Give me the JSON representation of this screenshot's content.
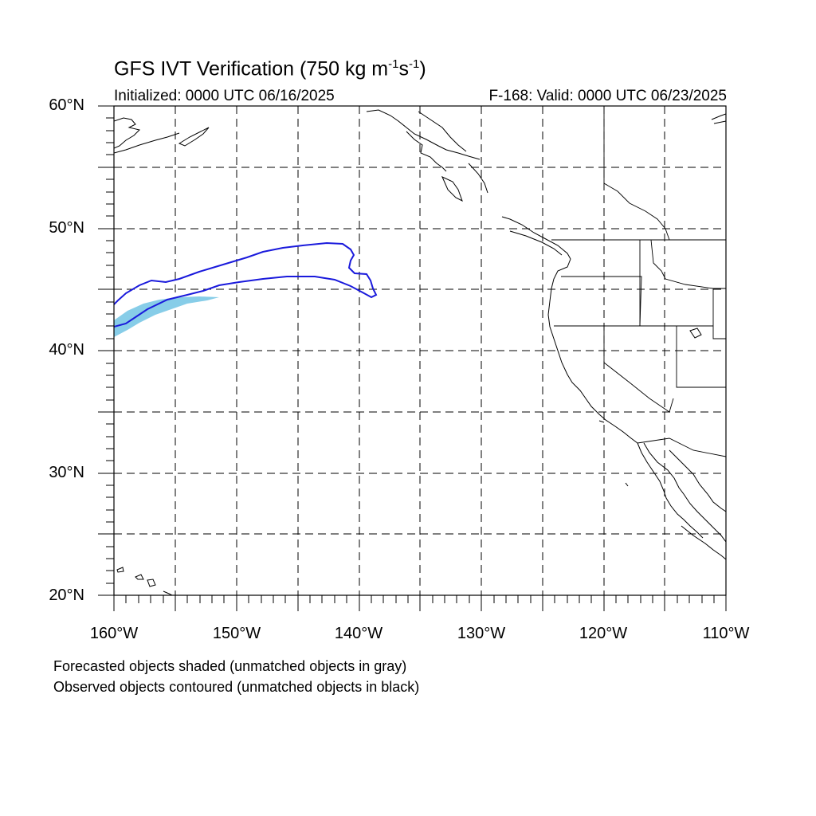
{
  "header": {
    "title_main": "GFS IVT Verification (750 kg m",
    "title_sup1": "-1",
    "title_mid": "s",
    "title_sup2": "-1",
    "title_end": ")",
    "initialized": "Initialized: 0000 UTC 06/16/2025",
    "valid": "F-168: Valid: 0000 UTC 06/23/2025"
  },
  "axes": {
    "lat_labels": [
      "60°N",
      "50°N",
      "40°N",
      "30°N",
      "20°N"
    ],
    "lon_labels": [
      "160°W",
      "150°W",
      "140°W",
      "130°W",
      "120°W",
      "110°W"
    ]
  },
  "legend": {
    "line1": "Forecasted objects shaded (unmatched objects in gray)",
    "line2": "Observed objects contoured (unmatched objects in black)"
  },
  "colors": {
    "forecast_fill": "#87cde8",
    "observed_contour": "#1a1adc",
    "coast": "#000000",
    "grid": "#000000"
  }
}
